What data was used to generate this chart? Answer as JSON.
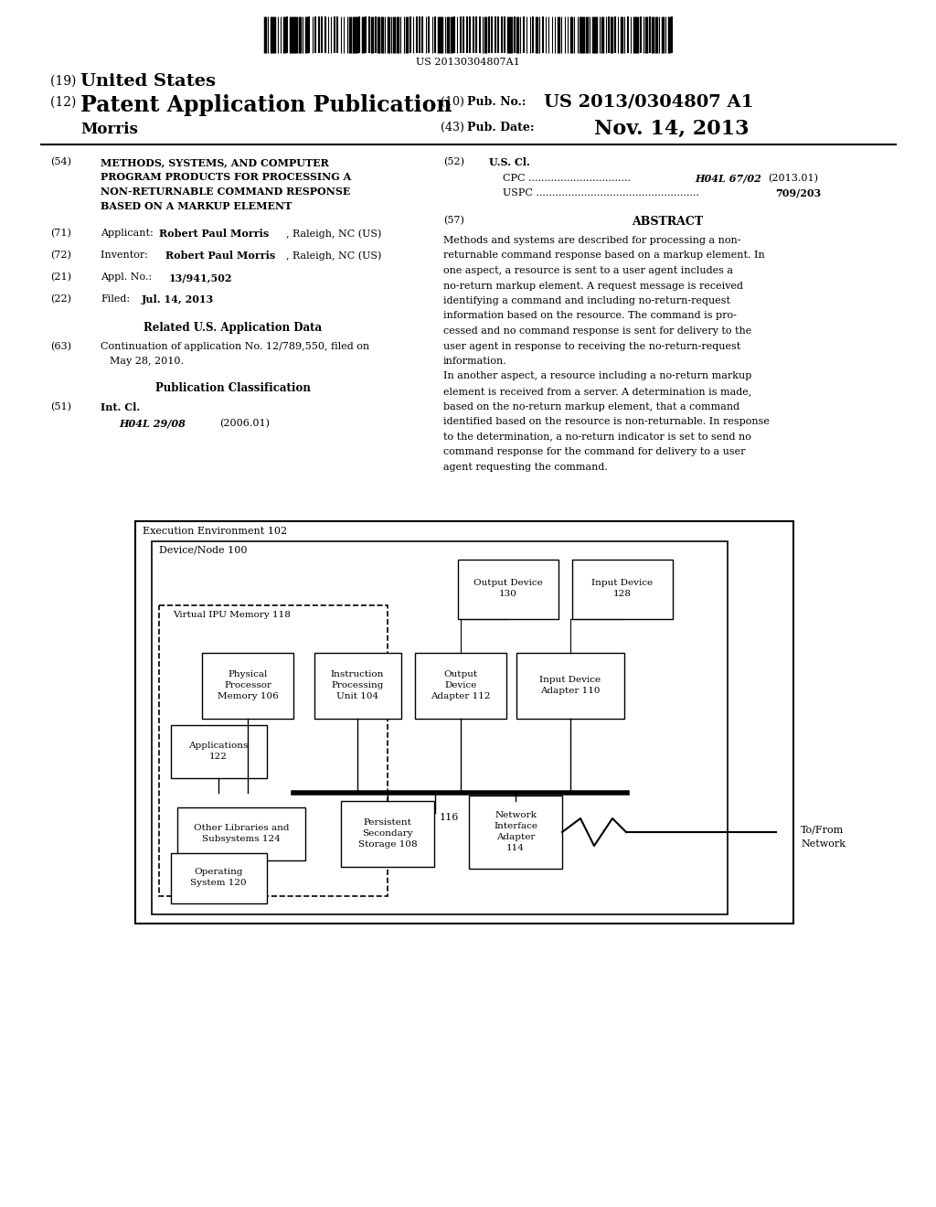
{
  "background_color": "#ffffff",
  "barcode_text": "US 20130304807A1",
  "fig_width": 10.24,
  "fig_height": 13.2,
  "dpi": 100,
  "header": {
    "title_19": "(19) United States",
    "title_12": "(12) Patent Application Publication",
    "author": "Morris",
    "pub_no_label": "(10) Pub. No.:",
    "pub_no_value": "US 2013/0304807 A1",
    "pub_date_label": "(43) Pub. Date:",
    "pub_date_value": "Nov. 14, 2013"
  },
  "left_col": {
    "field_54_lines": [
      "METHODS, SYSTEMS, AND COMPUTER",
      "PROGRAM PRODUCTS FOR PROCESSING A",
      "NON-RETURNABLE COMMAND RESPONSE",
      "BASED ON A MARKUP ELEMENT"
    ],
    "field_71_prefix": "(71)  Applicant: ",
    "field_71_bold": "Robert Paul Morris",
    "field_71_suffix": ", Raleigh, NC (US)",
    "field_72_prefix": "(72)  Inventor:",
    "field_72_bold": "Robert Paul Morris",
    "field_72_suffix": ", Raleigh, NC (US)",
    "field_21": "(21)  Appl. No.: ",
    "field_21_bold": "13/941,502",
    "field_22": "(22)  Filed:",
    "field_22_bold": "Jul. 14, 2013",
    "related_title": "Related U.S. Application Data",
    "field_63_line1": "(63)  Continuation of application No. 12/789,550, filed on",
    "field_63_line2": "       May 28, 2010.",
    "pub_class_title": "Publication Classification",
    "field_51_label": "(51)  Int. Cl.",
    "field_51_class": "H04L 29/08",
    "field_51_year": "(2006.01)"
  },
  "right_col": {
    "field_52_label": "(52)  U.S. Cl.",
    "field_52_cpc_dots": "CPC ................................",
    "field_52_cpc_class": "H04L 67/02",
    "field_52_cpc_year": "(2013.01)",
    "field_52_uspc_dots": "USPC ...................................................",
    "field_52_uspc_num": "709/203",
    "abstract_label": "(57)",
    "abstract_title": "ABSTRACT",
    "abstract_lines": [
      "Methods and systems are described for processing a non-",
      "returnable command response based on a markup element. In",
      "one aspect, a resource is sent to a user agent includes a",
      "no-return markup element. A request message is received",
      "identifying a command and including no-return-request",
      "information based on the resource. The command is pro-",
      "cessed and no command response is sent for delivery to the",
      "user agent in response to receiving the no-return-request",
      "information.",
      "In another aspect, a resource including a no-return markup",
      "element is received from a server. A determination is made,",
      "based on the no-return markup element, that a command",
      "identified based on the resource is non-returnable. In response",
      "to the determination, a no-return indicator is set to send no",
      "command response for the command for delivery to a user",
      "agent requesting the command."
    ]
  },
  "diagram": {
    "exec_label": "Execution Environment 102",
    "device_label": "Device/Node 100",
    "vipu_label": "Virtual IPU Memory 118",
    "bus_label": "116",
    "tofrom_label": "To/From\nNetwork"
  }
}
